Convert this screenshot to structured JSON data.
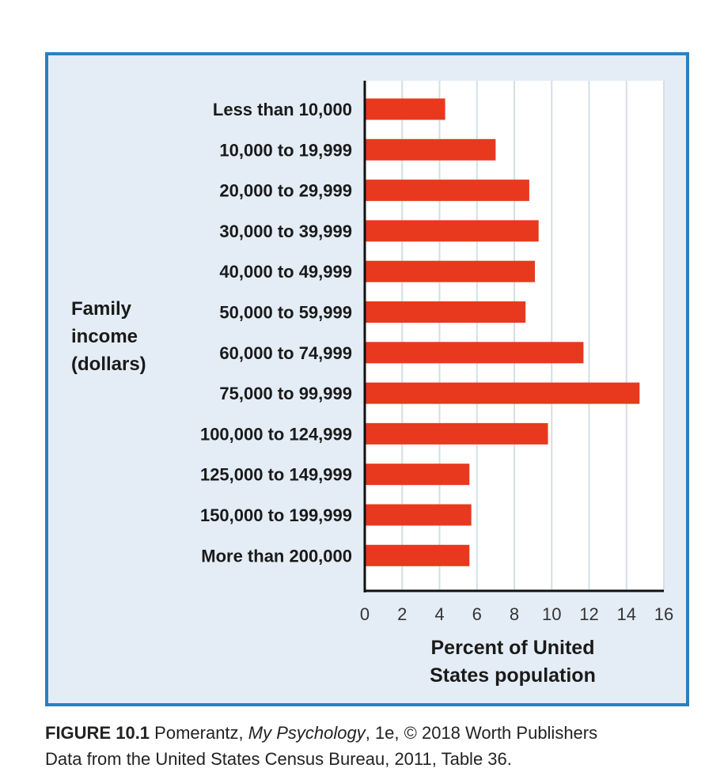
{
  "chart_data": {
    "type": "bar",
    "orientation": "horizontal",
    "categories": [
      "Less than 10,000",
      "10,000 to 19,999",
      "20,000 to 29,999",
      "30,000 to 39,999",
      "40,000 to 49,999",
      "50,000 to 59,999",
      "60,000 to 74,999",
      "75,000 to 99,999",
      "100,000 to 124,999",
      "125,000 to 149,999",
      "150,000 to 199,999",
      "More than 200,000"
    ],
    "values": [
      4.3,
      7.0,
      8.8,
      9.3,
      9.1,
      8.6,
      11.7,
      14.7,
      9.8,
      5.6,
      5.7,
      5.6
    ],
    "xlabel_lines": [
      "Percent of United",
      "States population"
    ],
    "ylabel_lines": [
      "Family",
      "income",
      "(dollars)"
    ],
    "xlim": [
      0,
      16
    ],
    "xticks": [
      "0",
      "2",
      "4",
      "6",
      "8",
      "10",
      "12",
      "14",
      "16"
    ],
    "grid": true,
    "bar_color": "#e8391e",
    "frame_color": "#2b7fc1"
  },
  "caption": {
    "figure": "FIGURE 10.1",
    "text_before": " Pomerantz, ",
    "book": "My Psychology",
    "text_after": ", 1e, © 2018 Worth Publishers",
    "source": "Data from the United States Census Bureau, 2011, Table 36."
  }
}
